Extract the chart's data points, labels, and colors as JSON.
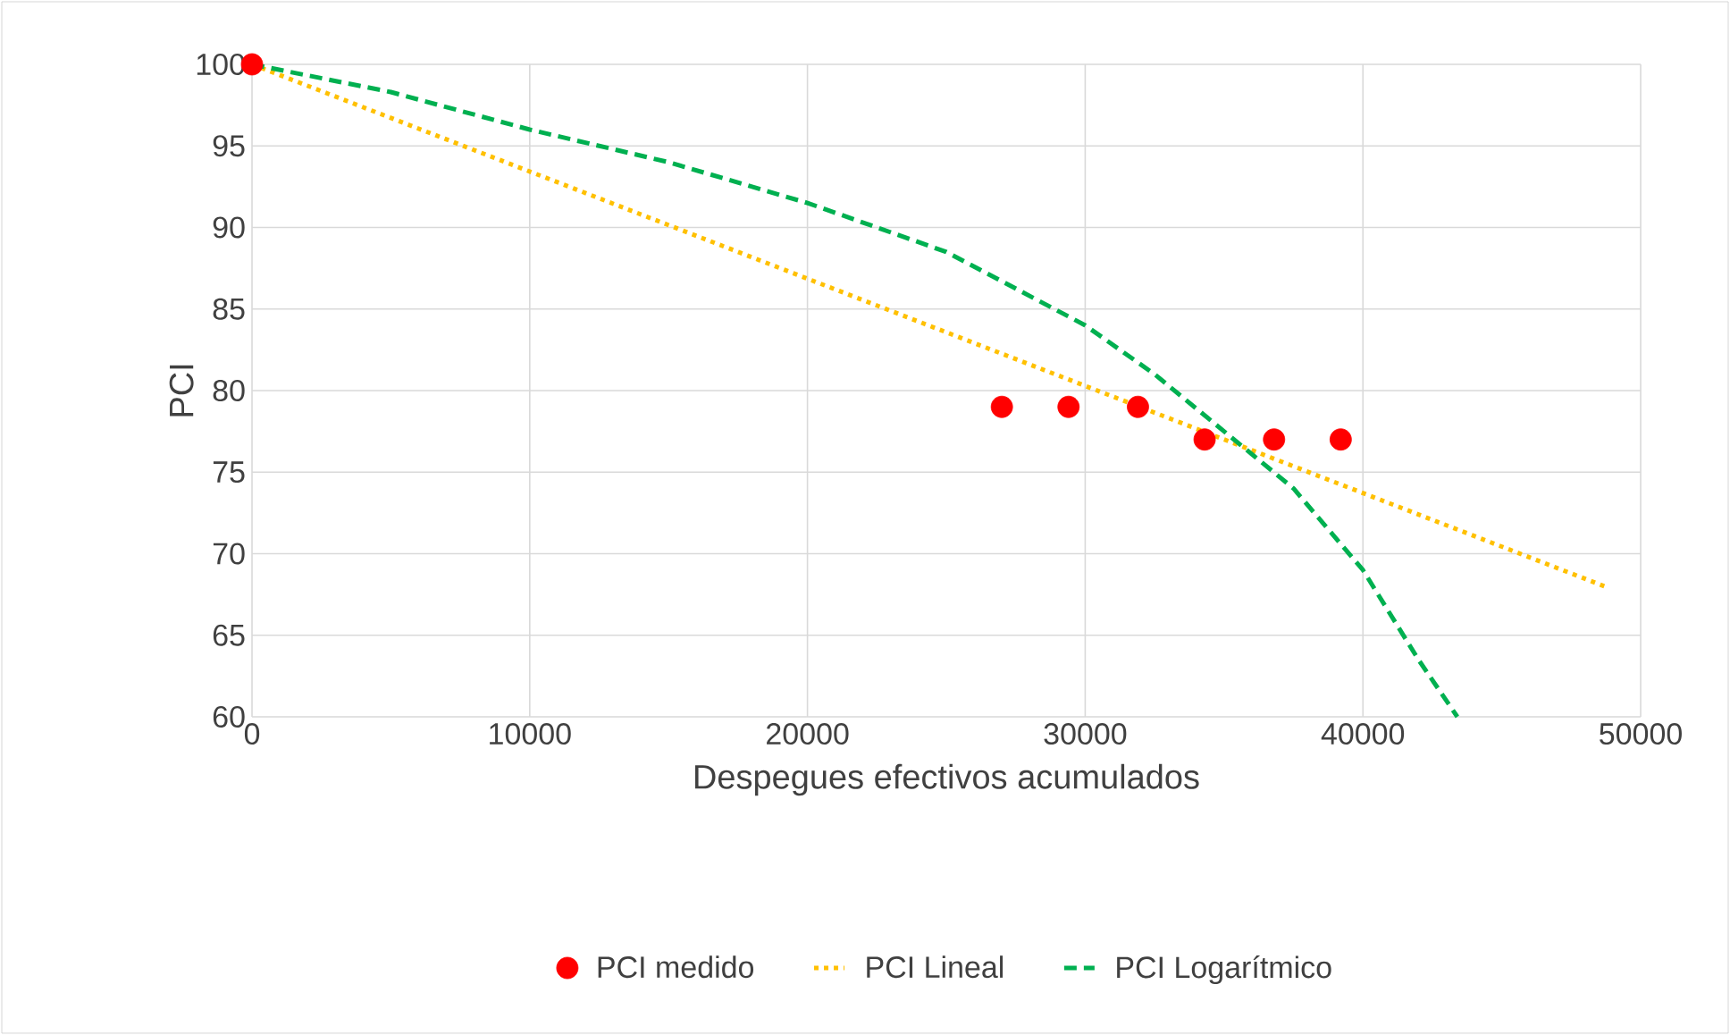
{
  "chart_data": {
    "type": "scatter",
    "xlabel": "Despegues efectivos acumulados",
    "ylabel": "PCI",
    "series": [
      {
        "name": "PCI medido",
        "marker": "circle",
        "color": "#ff0000",
        "x": [
          0,
          27000,
          29400,
          31900,
          34300,
          36800,
          39200
        ],
        "values": [
          100,
          79,
          79,
          79,
          77,
          77,
          77
        ]
      },
      {
        "name": "PCI Lineal",
        "type": "line",
        "line_style": "dotted",
        "marker": "none",
        "color": "#ffc000",
        "x": [
          0,
          48700
        ],
        "values": [
          100,
          68
        ]
      },
      {
        "name": "PCI Logarítmico",
        "type": "line",
        "line_style": "dashed",
        "marker": "none",
        "color": "#00b050",
        "x": [
          0,
          5000,
          10000,
          15000,
          20000,
          25000,
          30000,
          32500,
          35000,
          37500,
          40000,
          42000,
          43400
        ],
        "values": [
          100,
          98.3,
          96,
          94,
          91.5,
          88.5,
          84,
          81,
          77.5,
          74,
          69,
          63.5,
          60
        ]
      }
    ],
    "xlim": [
      0,
      50000
    ],
    "ylim": [
      60,
      100
    ],
    "xticks": [
      0,
      10000,
      20000,
      30000,
      40000,
      50000
    ],
    "yticks": [
      60,
      65,
      70,
      75,
      80,
      85,
      90,
      95,
      100
    ],
    "grid": true,
    "legend": "bottom"
  }
}
